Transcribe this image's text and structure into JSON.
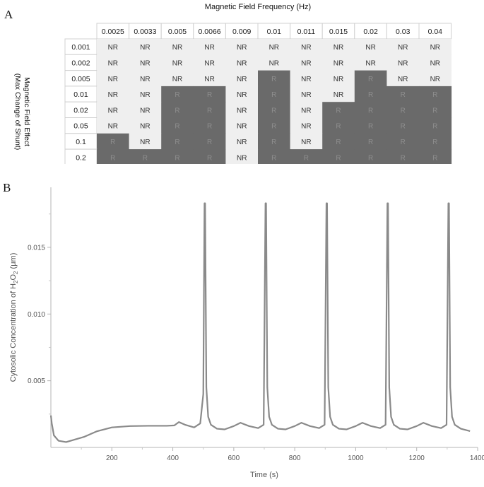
{
  "panel_a": {
    "letter": "A",
    "title": "Magnetic Field Frequency (Hz)",
    "row_axis_label_line1": "Magnetic Field Effect",
    "row_axis_label_line2": "(Max Change of Shunt)"
  },
  "panel_b": {
    "letter": "B"
  },
  "chart_data": [
    {
      "type": "table",
      "title": "Magnetic Field Frequency (Hz)",
      "ylabel": "Magnetic Field Effect (Max Change of Shunt)",
      "columns": [
        "0.0025",
        "0.0033",
        "0.005",
        "0.0066",
        "0.009",
        "0.01",
        "0.011",
        "0.015",
        "0.02",
        "0.03",
        "0.04"
      ],
      "rows": [
        "0.001",
        "0.002",
        "0.005",
        "0.01",
        "0.02",
        "0.05",
        "0.1",
        "0.2"
      ],
      "cells": [
        [
          "NR",
          "NR",
          "NR",
          "NR",
          "NR",
          "NR",
          "NR",
          "NR",
          "NR",
          "NR",
          "NR"
        ],
        [
          "NR",
          "NR",
          "NR",
          "NR",
          "NR",
          "NR",
          "NR",
          "NR",
          "NR",
          "NR",
          "NR"
        ],
        [
          "NR",
          "NR",
          "NR",
          "NR",
          "NR",
          "R",
          "NR",
          "NR",
          "R",
          "NR",
          "NR"
        ],
        [
          "NR",
          "NR",
          "R",
          "R",
          "NR",
          "R",
          "NR",
          "NR",
          "R",
          "R",
          "R"
        ],
        [
          "NR",
          "NR",
          "R",
          "R",
          "NR",
          "R",
          "NR",
          "R",
          "R",
          "R",
          "R"
        ],
        [
          "NR",
          "NR",
          "R",
          "R",
          "NR",
          "R",
          "NR",
          "R",
          "R",
          "R",
          "R"
        ],
        [
          "R",
          "NR",
          "R",
          "R",
          "NR",
          "R",
          "NR",
          "R",
          "R",
          "R",
          "R"
        ],
        [
          "R",
          "R",
          "R",
          "R",
          "NR",
          "R",
          "R",
          "R",
          "R",
          "R",
          "R"
        ]
      ],
      "colors": {
        "NR_fill": "#efefef",
        "R_fill": "#6a6a6a",
        "header_fill": "#ffffff"
      }
    },
    {
      "type": "line",
      "xlabel": "Time (s)",
      "ylabel_prefix": "Cytosolic Concentration of H",
      "ylabel_sub1": "2",
      "ylabel_mid": "O",
      "ylabel_sub2": "2",
      "ylabel_suffix": " (μm)",
      "xlim": [
        0,
        1400
      ],
      "ylim": [
        0,
        0.0195
      ],
      "xticks": [
        200,
        400,
        600,
        800,
        1000,
        1200,
        1400
      ],
      "yticks": [
        0.005,
        0.01,
        0.015
      ],
      "ytick_labels": [
        "0.005",
        "0.010",
        "0.015"
      ],
      "line_color": "#8a8a8a",
      "series": [
        {
          "x": [
            0,
            3,
            10,
            25,
            50,
            80,
            110,
            150,
            200,
            260,
            320,
            380,
            405,
            420,
            440,
            470,
            490,
            500,
            504,
            506,
            510,
            516,
            525,
            545,
            570,
            600,
            622,
            650,
            680,
            698,
            704,
            706,
            710,
            716,
            725,
            745,
            770,
            800,
            822,
            850,
            880,
            898,
            904,
            906,
            910,
            916,
            925,
            945,
            970,
            1000,
            1022,
            1050,
            1080,
            1098,
            1104,
            1106,
            1110,
            1116,
            1125,
            1145,
            1170,
            1200,
            1222,
            1250,
            1280,
            1298,
            1304,
            1306,
            1310,
            1316,
            1325,
            1345,
            1375
          ],
          "y": [
            0.0024,
            0.0018,
            0.0009,
            0.0005,
            0.0004,
            0.0006,
            0.0008,
            0.0012,
            0.0015,
            0.0016,
            0.00162,
            0.00162,
            0.00165,
            0.0019,
            0.0017,
            0.0015,
            0.0018,
            0.004,
            0.0183,
            0.0183,
            0.0045,
            0.0023,
            0.0017,
            0.0014,
            0.00135,
            0.0016,
            0.00185,
            0.0016,
            0.00145,
            0.0017,
            0.0183,
            0.0183,
            0.0045,
            0.0023,
            0.0017,
            0.0014,
            0.00135,
            0.0016,
            0.00185,
            0.0016,
            0.00145,
            0.0017,
            0.0183,
            0.0183,
            0.0045,
            0.0023,
            0.0017,
            0.0014,
            0.00135,
            0.0016,
            0.00185,
            0.0016,
            0.00145,
            0.0017,
            0.0183,
            0.0183,
            0.0045,
            0.0023,
            0.0017,
            0.0014,
            0.00135,
            0.0016,
            0.00185,
            0.0016,
            0.00145,
            0.0017,
            0.0183,
            0.0183,
            0.0045,
            0.0023,
            0.0017,
            0.0014,
            0.00122
          ]
        }
      ]
    }
  ]
}
